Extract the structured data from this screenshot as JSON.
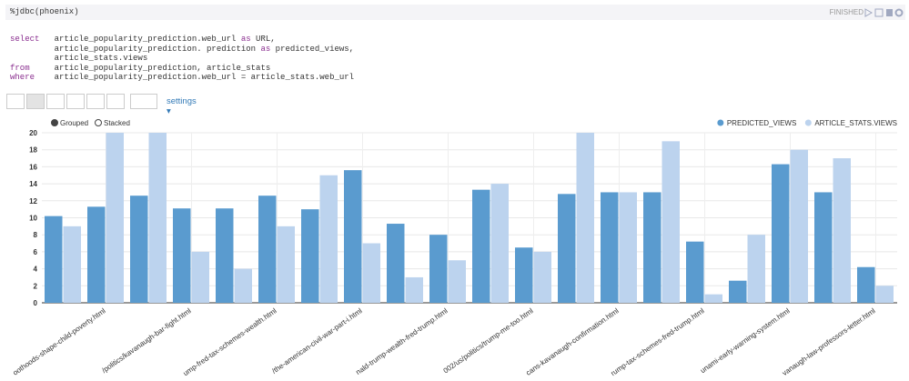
{
  "paragraph": {
    "title": "%jdbc(phoenix)",
    "status": "FINISHED",
    "code": [
      [
        {
          "text": "select",
          "keyword": true
        },
        {
          "text": "   article_popularity_prediction.web_url "
        },
        {
          "text": "as",
          "keyword": true
        },
        {
          "text": " URL,"
        }
      ],
      [
        {
          "text": "         article_popularity_prediction. prediction "
        },
        {
          "text": "as",
          "keyword": true
        },
        {
          "text": " predicted_views,"
        }
      ],
      [
        {
          "text": "         article_stats.views"
        }
      ],
      [
        {
          "text": "from",
          "keyword": true
        },
        {
          "text": "     article_popularity_prediction, article_stats"
        }
      ],
      [
        {
          "text": "where",
          "keyword": true
        },
        {
          "text": "    article_popularity_prediction.web_url = article_stats.web_url"
        }
      ]
    ],
    "settings": "settings"
  },
  "chart_data": {
    "type": "bar",
    "mode": "grouped",
    "controls": [
      "Grouped",
      "Stacked"
    ],
    "legend": "top-right",
    "grid": true,
    "categories": [
      null,
      "oothoods-shape-child-poverty.html",
      null,
      "/politics/kavanaugh-bar-fight.html",
      null,
      "ump-fred-tax-schemes-wealth.html",
      null,
      "/the-american-civil-war-part-i.html",
      null,
      "nald-trump-wealth-fred-trump.html",
      null,
      "002/us/politics/trump-me-too.html",
      null,
      "cans-kavanaugh-confirmation.html",
      null,
      "rump-tax-schemes-fred-trump.html",
      null,
      "unami-early-warning-system.html",
      null,
      "vanaugh-law-professors-letter.html"
    ],
    "series": [
      {
        "name": "PREDICTED_VIEWS",
        "color": "#5a9bcf",
        "values": [
          10.2,
          11.3,
          12.6,
          11.1,
          11.1,
          12.6,
          11.0,
          15.6,
          9.3,
          8.0,
          13.3,
          6.5,
          12.8,
          13.0,
          13.0,
          7.2,
          2.6,
          16.3,
          13.0,
          4.2
        ]
      },
      {
        "name": "ARTICLE_STATS.VIEWS",
        "color": "#bcd3ee",
        "values": [
          9,
          20,
          20,
          6,
          4,
          9,
          15,
          7,
          3,
          5,
          14,
          6,
          20,
          13,
          19,
          1,
          8,
          18,
          17,
          2
        ]
      }
    ],
    "ylim": [
      0,
      20
    ],
    "yticks": [
      0,
      2,
      4,
      6,
      8,
      10,
      12,
      14,
      16,
      18,
      20
    ]
  }
}
